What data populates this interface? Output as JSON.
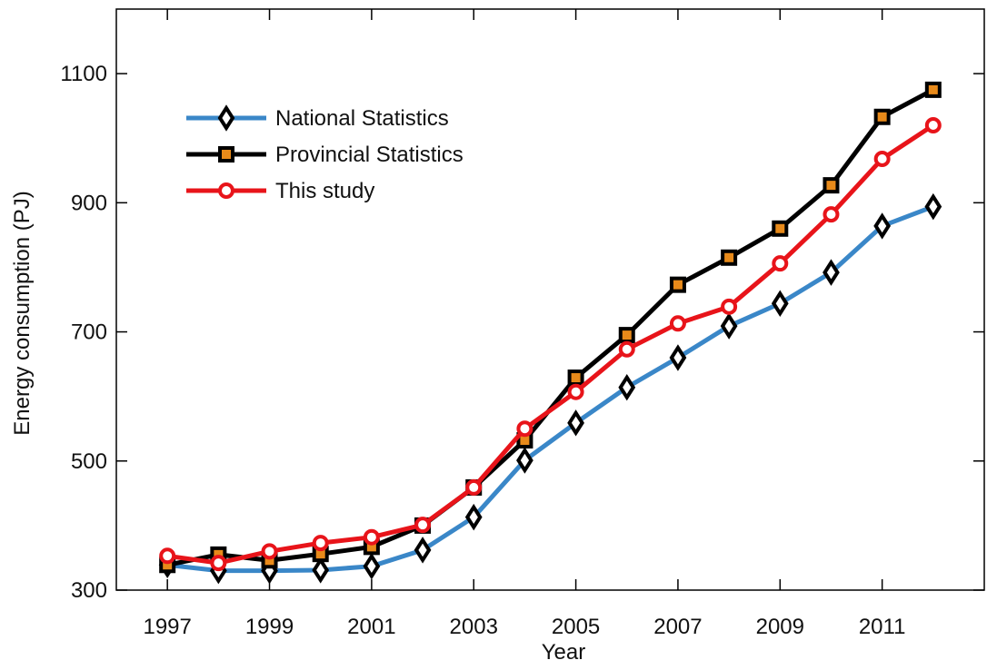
{
  "chart_data": {
    "type": "line",
    "xlabel": "Year",
    "ylabel": "Energy consumption (PJ)",
    "x": [
      1997,
      1998,
      1999,
      2000,
      2001,
      2002,
      2003,
      2004,
      2005,
      2006,
      2007,
      2008,
      2009,
      2010,
      2011,
      2012
    ],
    "series": [
      {
        "name": "National Statistics",
        "color": "#3a87c8",
        "marker": "diamond",
        "marker_fill": "#ffffff",
        "marker_stroke": "#000000",
        "values": [
          339,
          330,
          330,
          331,
          337,
          362,
          413,
          501,
          559,
          614,
          660,
          709,
          744,
          792,
          864,
          894
        ]
      },
      {
        "name": "Provincial Statistics",
        "color": "#000000",
        "marker": "square",
        "marker_fill": "#e88a1a",
        "marker_stroke": "#000000",
        "values": [
          339,
          355,
          346,
          356,
          367,
          400,
          459,
          532,
          629,
          695,
          773,
          815,
          860,
          927,
          1033,
          1075
        ]
      },
      {
        "name": "This study",
        "color": "#e8141a",
        "marker": "circle",
        "marker_fill": "#ffffff",
        "marker_stroke": "#e8141a",
        "values": [
          353,
          342,
          360,
          373,
          382,
          401,
          459,
          550,
          607,
          673,
          713,
          739,
          806,
          882,
          968,
          1020
        ]
      }
    ],
    "xlim": [
      1996,
      2013
    ],
    "xticks": [
      1997,
      1999,
      2001,
      2003,
      2005,
      2007,
      2009,
      2011
    ],
    "ylim": [
      300,
      1200
    ],
    "yticks": [
      300,
      500,
      700,
      900,
      1100
    ],
    "legend": "upper left",
    "grid": false
  }
}
